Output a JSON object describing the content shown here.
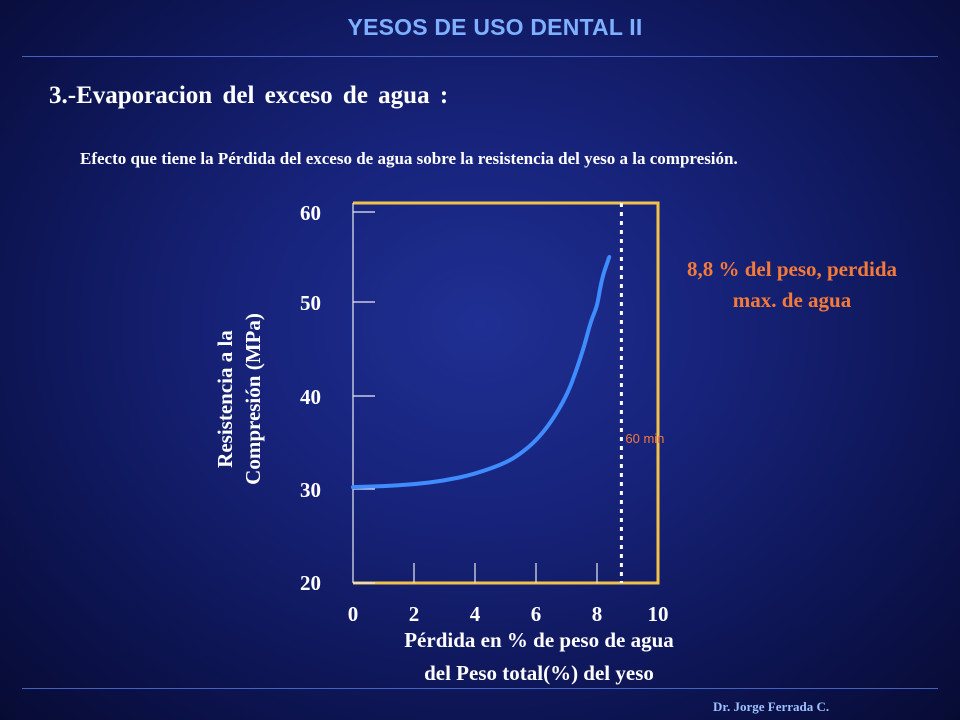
{
  "header": {
    "title": "YESOS DE USO DENTAL II"
  },
  "section": {
    "title": "3.-Evaporacion del exceso de agua :",
    "description": "Efecto que tiene la Pérdida del exceso de agua sobre la resistencia del yeso a la compresión."
  },
  "footer": {
    "credit": "Dr. Jorge Ferrada C."
  },
  "colors": {
    "background": "#131d6e",
    "header_text": "#7fb0ff",
    "frame": "#f2c14a",
    "curve": "#3f8cff",
    "annotation": "#f47a3a",
    "marker_line": "#ffffff"
  },
  "chart_data": {
    "type": "line",
    "ylabel": "Resistencia a la\nCompresión (MPa)",
    "xlabel": "Pérdida en % de peso de agua\ndel Peso total(%) del yeso",
    "xlim": [
      0,
      10
    ],
    "ylim": [
      20,
      60
    ],
    "x_ticks": [
      0,
      2,
      4,
      6,
      8,
      10
    ],
    "y_ticks": [
      20,
      30,
      40,
      50,
      60
    ],
    "series": [
      {
        "x": [
          0,
          1,
          2,
          3,
          4,
          5,
          5.5,
          6,
          6.5,
          7,
          7.3,
          7.6,
          7.8,
          8.0,
          8.1,
          8.2,
          8.3,
          8.4
        ],
        "y": [
          30.2,
          30.3,
          30.5,
          30.9,
          31.6,
          32.8,
          33.8,
          35.2,
          37.2,
          40.0,
          42.5,
          45.5,
          48.0,
          49.5,
          51.5,
          53.0,
          54.0,
          55.0
        ]
      }
    ],
    "marker": {
      "x": 8.8,
      "label": "60 min"
    },
    "annotation": "8,8 % del peso, perdida\nmax. de agua",
    "grid": false
  }
}
